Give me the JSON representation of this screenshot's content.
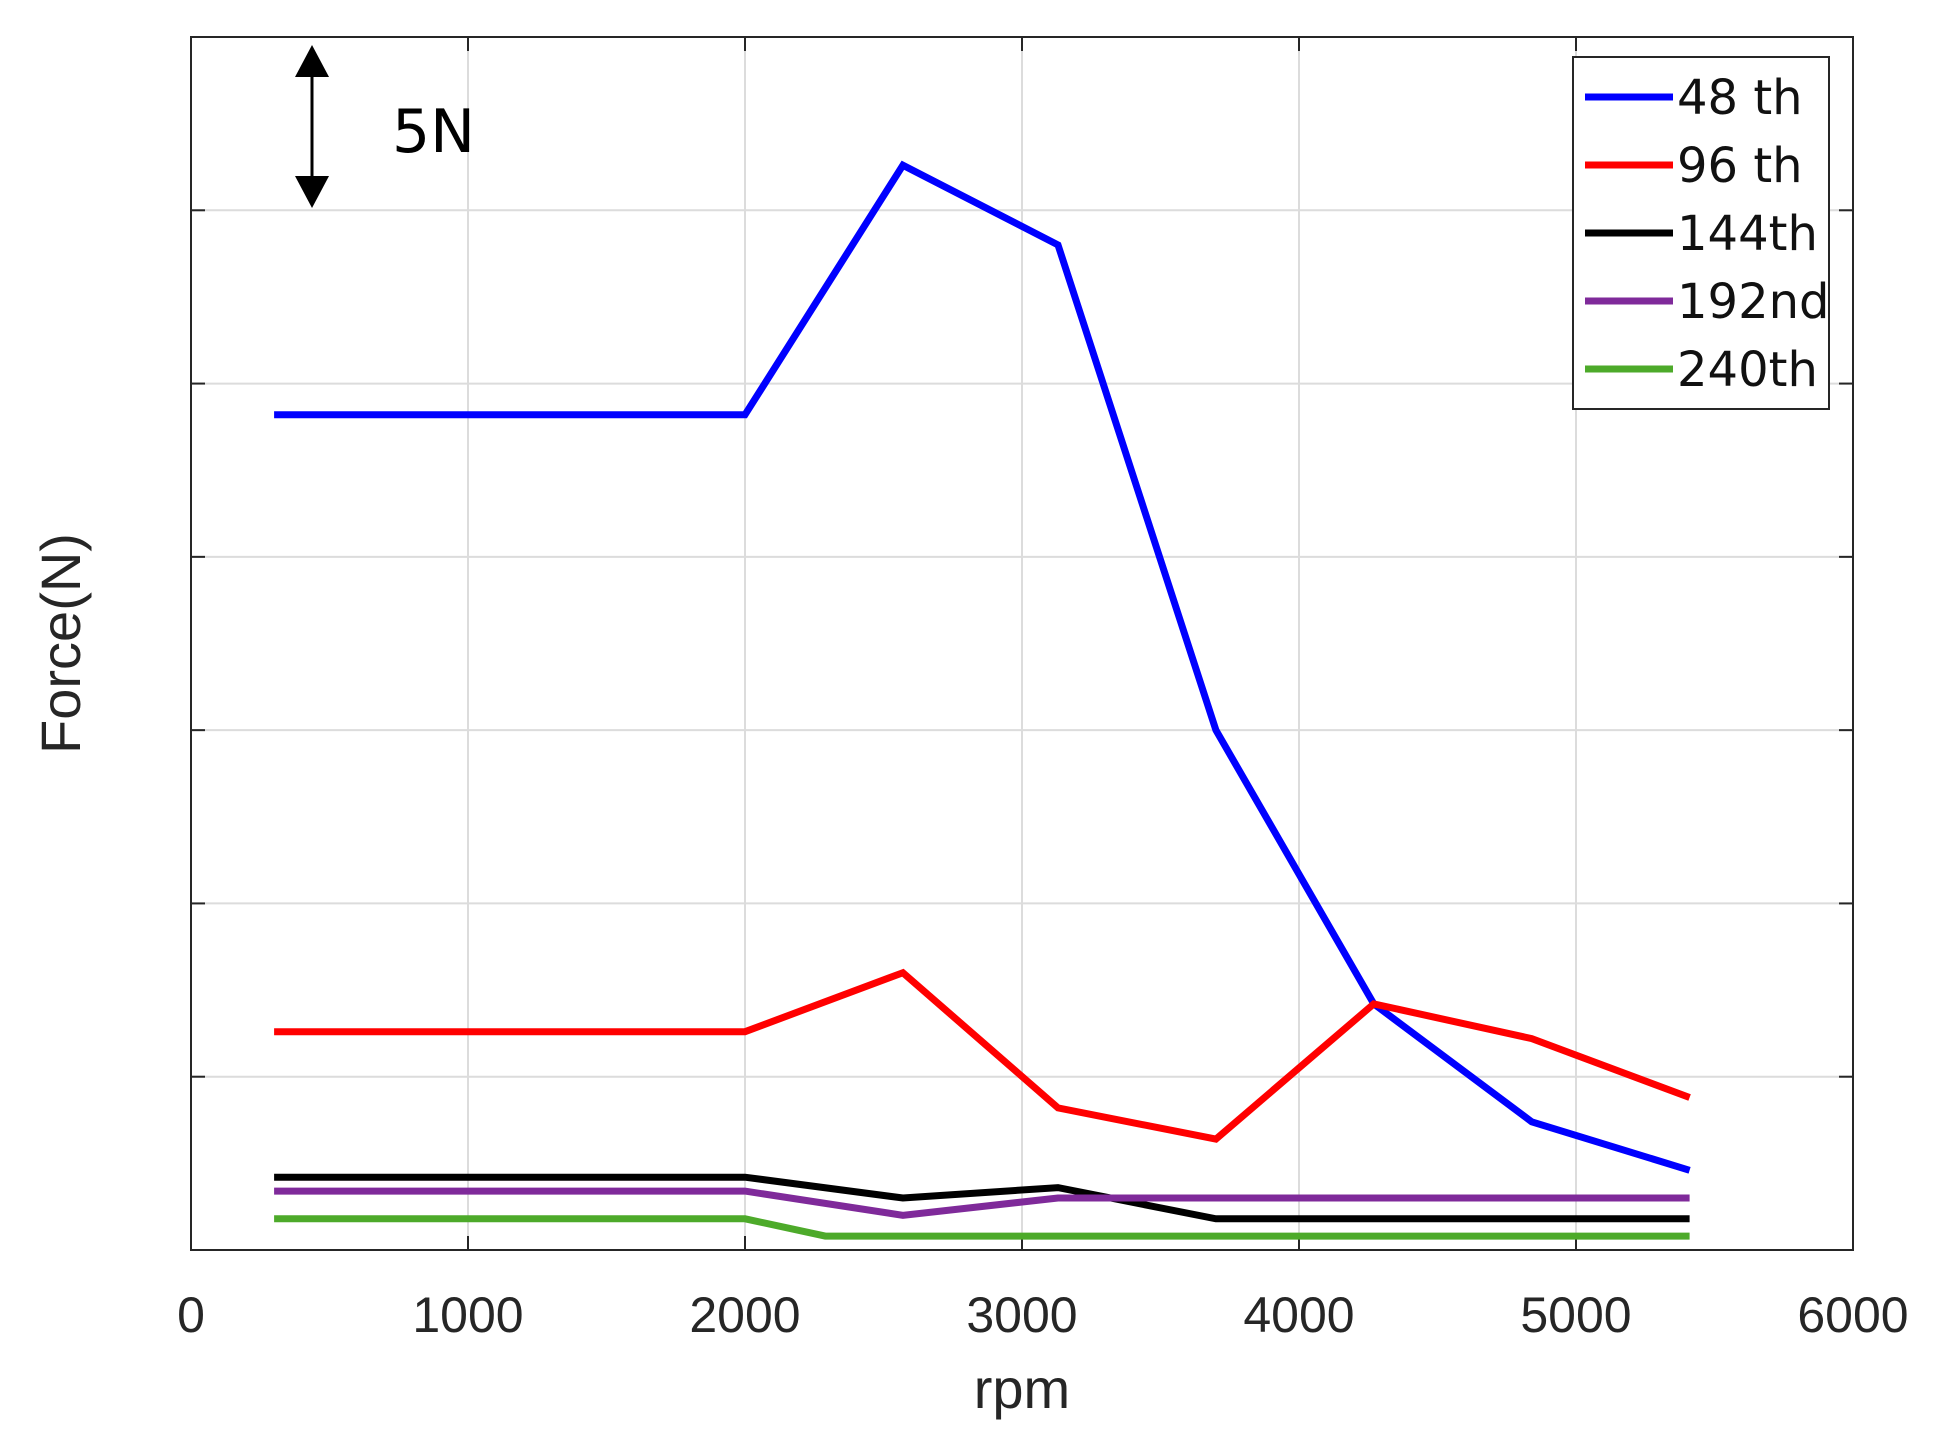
{
  "chart_data": {
    "type": "line",
    "title": "",
    "xlabel": "rpm",
    "ylabel": "Force(N)",
    "xlim": [
      0,
      6000
    ],
    "ylim": [
      0,
      35
    ],
    "x_ticks": [
      0,
      1000,
      2000,
      3000,
      4000,
      5000,
      6000
    ],
    "x_tick_labels": [
      "0",
      "1000",
      "2000",
      "3000",
      "4000",
      "5000",
      "6000"
    ],
    "y_ticks": [
      5,
      10,
      15,
      20,
      25,
      30
    ],
    "grid": true,
    "legend_position": "top-right",
    "scale_annotation": "5N",
    "series": [
      {
        "name": "48 th",
        "color": "#0000ff",
        "x": [
          300,
          2000,
          2570,
          3130,
          3700,
          4270,
          4840,
          5410
        ],
        "y": [
          24.1,
          24.1,
          31.3,
          29.0,
          15.0,
          7.1,
          3.7,
          2.3
        ]
      },
      {
        "name": "96 th",
        "color": "#ff0000",
        "x": [
          300,
          2000,
          2570,
          3130,
          3700,
          4270,
          4840,
          5410
        ],
        "y": [
          6.3,
          6.3,
          8.0,
          4.1,
          3.2,
          7.1,
          6.1,
          4.4
        ]
      },
      {
        "name": "144th",
        "color": "#000000",
        "x": [
          300,
          2000,
          2570,
          3130,
          3700,
          4270,
          4840,
          5410
        ],
        "y": [
          2.1,
          2.1,
          1.5,
          1.8,
          0.9,
          0.9,
          0.9,
          0.9
        ]
      },
      {
        "name": "192nd",
        "color": "#7f2a9a",
        "x": [
          300,
          2000,
          2570,
          3130,
          3700,
          4270,
          4840,
          5410
        ],
        "y": [
          1.7,
          1.7,
          1.0,
          1.5,
          1.5,
          1.5,
          1.5,
          1.5
        ]
      },
      {
        "name": "240th",
        "color": "#4daa2a",
        "x": [
          300,
          2000,
          2290,
          2570,
          3130,
          3700,
          4270,
          4840,
          5410
        ],
        "y": [
          0.9,
          0.9,
          0.4,
          0.4,
          0.4,
          0.4,
          0.4,
          0.4,
          0.4
        ]
      }
    ]
  }
}
